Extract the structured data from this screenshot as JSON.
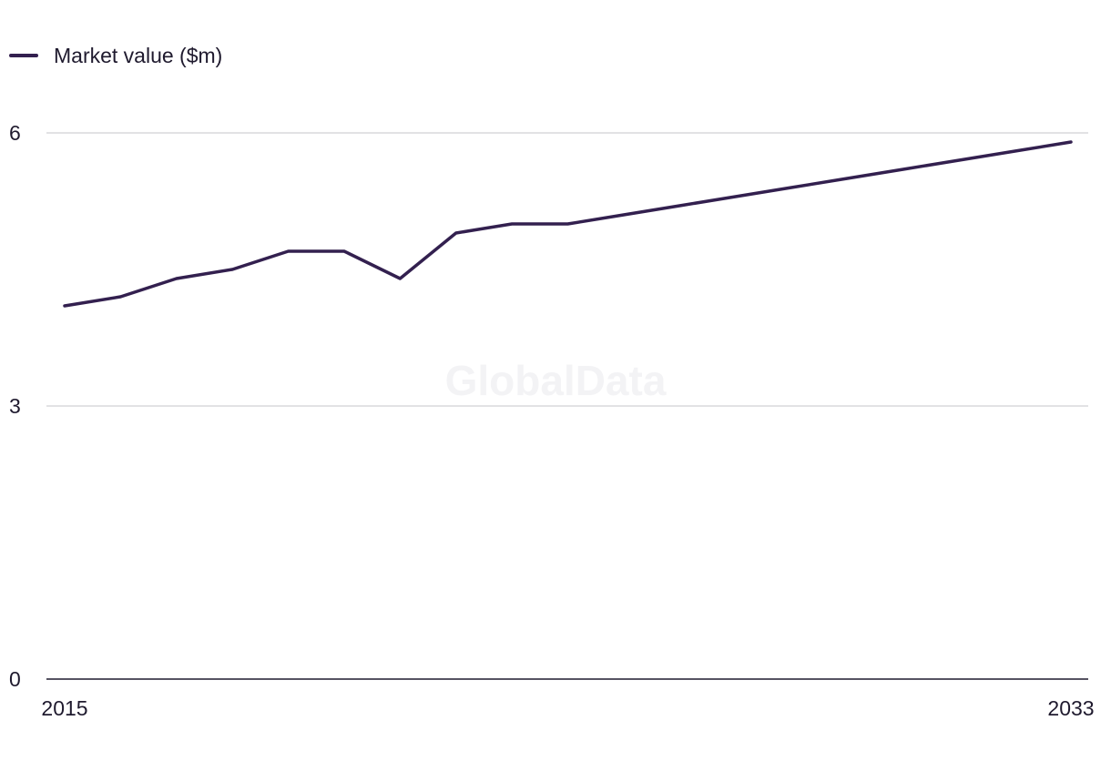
{
  "chart_data": {
    "type": "line",
    "title": "",
    "xlabel": "",
    "ylabel": "",
    "x": [
      2015,
      2016,
      2017,
      2018,
      2019,
      2020,
      2021,
      2022,
      2023,
      2024,
      2025,
      2026,
      2027,
      2028,
      2029,
      2030,
      2031,
      2032,
      2033
    ],
    "series": [
      {
        "name": "Market value ($m)",
        "color": "#33204f",
        "values": [
          4.1,
          4.2,
          4.4,
          4.5,
          4.7,
          4.7,
          4.4,
          4.9,
          5.0,
          5.0,
          5.1,
          5.2,
          5.3,
          5.4,
          5.5,
          5.6,
          5.7,
          5.8,
          5.9
        ]
      }
    ],
    "ylim": [
      0,
      6
    ],
    "xlim": [
      2015,
      2033
    ],
    "y_ticks": [
      0,
      3,
      6
    ],
    "y_tick_labels": [
      "0",
      "3",
      "6"
    ],
    "x_ticks": [
      2015,
      2033
    ],
    "x_tick_labels": [
      "2015",
      "2033"
    ],
    "grid": true,
    "legend_position": "top-left"
  },
  "watermark": "GlobalData",
  "colors": {
    "series": "#33204f",
    "grid": "#d9d9dc",
    "axis": "#1f1a2e"
  }
}
